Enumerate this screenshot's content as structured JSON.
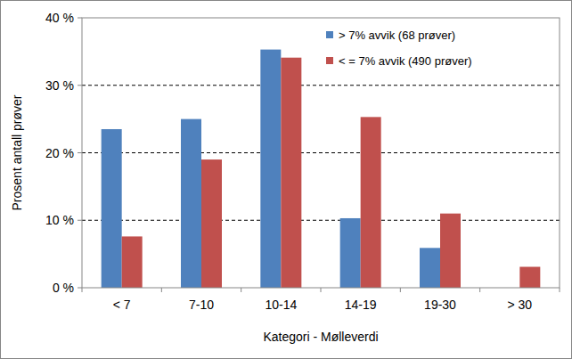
{
  "chart_data": {
    "type": "bar",
    "x_label": "Kategori - Mølleverdi",
    "y_label": "Prosent antall prøver",
    "categories": [
      "< 7",
      "7-10",
      "10-14",
      "14-19",
      "19-30",
      "> 30"
    ],
    "series": [
      {
        "name": "> 7% avvik (68 prøver)",
        "color": "#4f81bd",
        "values": [
          23.5,
          25.0,
          35.3,
          10.3,
          5.9,
          0
        ]
      },
      {
        "name": "< = 7% avvik (490 prøver)",
        "color": "#c0504d",
        "values": [
          7.6,
          19.0,
          34.1,
          25.3,
          11.0,
          3.1
        ]
      }
    ],
    "ylim": [
      0,
      40
    ],
    "yticks": [
      {
        "value": 0,
        "label": "0 %"
      },
      {
        "value": 10,
        "label": "10 %"
      },
      {
        "value": 20,
        "label": "20 %"
      },
      {
        "value": 30,
        "label": "30 %"
      },
      {
        "value": 40,
        "label": "40 %"
      }
    ],
    "grid": true,
    "legend": "upper right"
  }
}
